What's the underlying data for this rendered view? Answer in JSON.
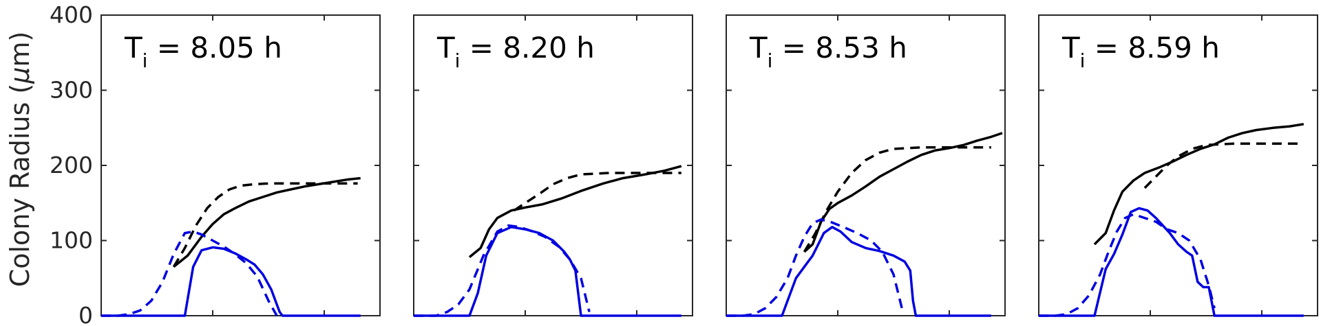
{
  "chart_data": [
    {
      "type": "line",
      "title_main": "T",
      "title_sub": "i",
      "title_rest": " = 8.05 h",
      "ylabel_text": "Colony Radius (",
      "ylabel_mu": "μ",
      "ylabel_unit": "m)",
      "ylim": [
        0,
        400
      ],
      "yticks": [
        "0",
        "100",
        "200",
        "300",
        "400"
      ],
      "xlim": [
        0,
        1
      ],
      "grid": false,
      "series": [
        {
          "color": "#000000",
          "style": "solid",
          "x": [
            0.26,
            0.31,
            0.36,
            0.4,
            0.44,
            0.48,
            0.53,
            0.58,
            0.63,
            0.68,
            0.73,
            0.78,
            0.83,
            0.88,
            0.93
          ],
          "y": [
            65,
            80,
            105,
            122,
            135,
            143,
            152,
            158,
            164,
            168,
            172,
            175,
            178,
            181,
            183
          ]
        },
        {
          "color": "#000000",
          "style": "dashed",
          "x": [
            0.26,
            0.3,
            0.34,
            0.38,
            0.42,
            0.46,
            0.5,
            0.55,
            0.6,
            0.7,
            0.8,
            0.92
          ],
          "y": [
            65,
            90,
            120,
            143,
            158,
            168,
            173,
            175,
            176,
            176,
            176,
            176
          ]
        },
        {
          "color": "#0000e0",
          "style": "solid",
          "x": [
            0.0,
            0.3,
            0.33,
            0.36,
            0.4,
            0.44,
            0.48,
            0.52,
            0.55,
            0.58,
            0.61,
            0.64,
            0.65,
            0.7,
            0.93
          ],
          "y": [
            0,
            0,
            65,
            87,
            91,
            89,
            83,
            75,
            68,
            55,
            35,
            5,
            0,
            0,
            0
          ]
        },
        {
          "color": "#0000e0",
          "style": "dashed",
          "x": [
            0.0,
            0.06,
            0.1,
            0.14,
            0.18,
            0.22,
            0.26,
            0.3,
            0.33,
            0.36,
            0.4,
            0.44,
            0.48,
            0.52,
            0.56,
            0.6,
            0.63
          ],
          "y": [
            0,
            0,
            2,
            7,
            20,
            45,
            82,
            110,
            112,
            108,
            100,
            92,
            82,
            70,
            52,
            20,
            0
          ]
        }
      ]
    },
    {
      "type": "line",
      "title_main": "T",
      "title_sub": "i",
      "title_rest": " = 8.20 h",
      "ylim": [
        0,
        400
      ],
      "xlim": [
        0,
        1
      ],
      "grid": false,
      "series": [
        {
          "color": "#000000",
          "style": "solid",
          "x": [
            0.2,
            0.24,
            0.27,
            0.3,
            0.35,
            0.4,
            0.46,
            0.53,
            0.6,
            0.68,
            0.75,
            0.83,
            0.9,
            0.96
          ],
          "y": [
            78,
            90,
            115,
            130,
            140,
            144,
            148,
            156,
            166,
            176,
            183,
            188,
            193,
            199
          ]
        },
        {
          "color": "#000000",
          "style": "dashed",
          "x": [
            0.36,
            0.4,
            0.45,
            0.5,
            0.55,
            0.6,
            0.7,
            0.8,
            0.96
          ],
          "y": [
            140,
            150,
            162,
            175,
            183,
            188,
            190,
            190,
            190
          ]
        },
        {
          "color": "#0000e0",
          "style": "solid",
          "x": [
            0.0,
            0.2,
            0.23,
            0.26,
            0.3,
            0.35,
            0.4,
            0.45,
            0.5,
            0.54,
            0.56,
            0.58,
            0.6,
            0.65,
            0.96
          ],
          "y": [
            0,
            0,
            30,
            80,
            110,
            118,
            115,
            110,
            100,
            85,
            75,
            60,
            0,
            0,
            0
          ]
        },
        {
          "color": "#0000e0",
          "style": "dashed",
          "x": [
            0.0,
            0.08,
            0.12,
            0.16,
            0.2,
            0.25,
            0.3,
            0.34,
            0.38,
            0.42,
            0.47,
            0.52,
            0.56,
            0.6,
            0.63
          ],
          "y": [
            0,
            0,
            5,
            15,
            35,
            80,
            112,
            120,
            118,
            113,
            105,
            92,
            75,
            50,
            5
          ]
        }
      ]
    },
    {
      "type": "line",
      "title_main": "T",
      "title_sub": "i",
      "title_rest": " = 8.53 h",
      "ylim": [
        0,
        400
      ],
      "xlim": [
        0,
        1
      ],
      "grid": false,
      "series": [
        {
          "color": "#000000",
          "style": "solid",
          "x": [
            0.28,
            0.31,
            0.34,
            0.37,
            0.4,
            0.45,
            0.5,
            0.55,
            0.6,
            0.65,
            0.7,
            0.75,
            0.8,
            0.85,
            0.9,
            0.95,
            0.99
          ],
          "y": [
            85,
            95,
            125,
            142,
            150,
            160,
            172,
            185,
            195,
            205,
            214,
            220,
            223,
            227,
            233,
            238,
            243
          ]
        },
        {
          "color": "#000000",
          "style": "dashed",
          "x": [
            0.28,
            0.32,
            0.36,
            0.4,
            0.45,
            0.5,
            0.55,
            0.6,
            0.65,
            0.7,
            0.8,
            0.95
          ],
          "y": [
            85,
            110,
            140,
            165,
            190,
            207,
            217,
            222,
            223,
            224,
            224,
            224
          ]
        },
        {
          "color": "#0000e0",
          "style": "solid",
          "x": [
            0.0,
            0.1,
            0.2,
            0.25,
            0.28,
            0.31,
            0.35,
            0.38,
            0.41,
            0.45,
            0.5,
            0.55,
            0.6,
            0.64,
            0.66,
            0.67,
            0.68,
            0.95
          ],
          "y": [
            0,
            0,
            0,
            50,
            65,
            80,
            110,
            118,
            112,
            98,
            90,
            86,
            80,
            72,
            60,
            20,
            0,
            0
          ]
        },
        {
          "color": "#0000e0",
          "style": "dashed",
          "x": [
            0.0,
            0.06,
            0.1,
            0.14,
            0.18,
            0.22,
            0.25,
            0.28,
            0.31,
            0.34,
            0.38,
            0.42,
            0.47,
            0.52,
            0.56,
            0.6,
            0.63
          ],
          "y": [
            0,
            0,
            2,
            10,
            25,
            50,
            80,
            105,
            123,
            128,
            124,
            118,
            110,
            100,
            85,
            55,
            10
          ]
        }
      ]
    },
    {
      "type": "line",
      "title_main": "T",
      "title_sub": "i",
      "title_rest": " = 8.59 h",
      "ylim": [
        0,
        400
      ],
      "xlim": [
        0,
        1
      ],
      "grid": false,
      "series": [
        {
          "color": "#000000",
          "style": "solid",
          "x": [
            0.2,
            0.24,
            0.27,
            0.3,
            0.34,
            0.38,
            0.43,
            0.48,
            0.53,
            0.58,
            0.63,
            0.68,
            0.73,
            0.78,
            0.84,
            0.9,
            0.95
          ],
          "y": [
            95,
            110,
            140,
            165,
            180,
            190,
            197,
            205,
            214,
            222,
            228,
            237,
            243,
            247,
            250,
            252,
            255
          ]
        },
        {
          "color": "#000000",
          "style": "dashed",
          "x": [
            0.38,
            0.42,
            0.46,
            0.5,
            0.55,
            0.6,
            0.7,
            0.8,
            0.95
          ],
          "y": [
            170,
            185,
            200,
            212,
            222,
            227,
            229,
            229,
            229
          ]
        },
        {
          "color": "#0000e0",
          "style": "solid",
          "x": [
            0.0,
            0.2,
            0.24,
            0.27,
            0.3,
            0.33,
            0.36,
            0.39,
            0.42,
            0.45,
            0.47,
            0.5,
            0.53,
            0.55,
            0.57,
            0.59,
            0.61,
            0.63,
            0.65,
            0.95
          ],
          "y": [
            0,
            0,
            62,
            82,
            108,
            138,
            143,
            140,
            130,
            118,
            110,
            95,
            85,
            80,
            45,
            38,
            38,
            0,
            0,
            0
          ]
        },
        {
          "color": "#0000e0",
          "style": "dashed",
          "x": [
            0.0,
            0.06,
            0.1,
            0.14,
            0.18,
            0.22,
            0.25,
            0.28,
            0.31,
            0.34,
            0.38,
            0.42,
            0.46,
            0.5,
            0.54,
            0.58,
            0.61,
            0.63
          ],
          "y": [
            0,
            0,
            2,
            10,
            27,
            55,
            85,
            112,
            130,
            135,
            130,
            125,
            115,
            110,
            100,
            75,
            40,
            10
          ]
        }
      ]
    }
  ]
}
